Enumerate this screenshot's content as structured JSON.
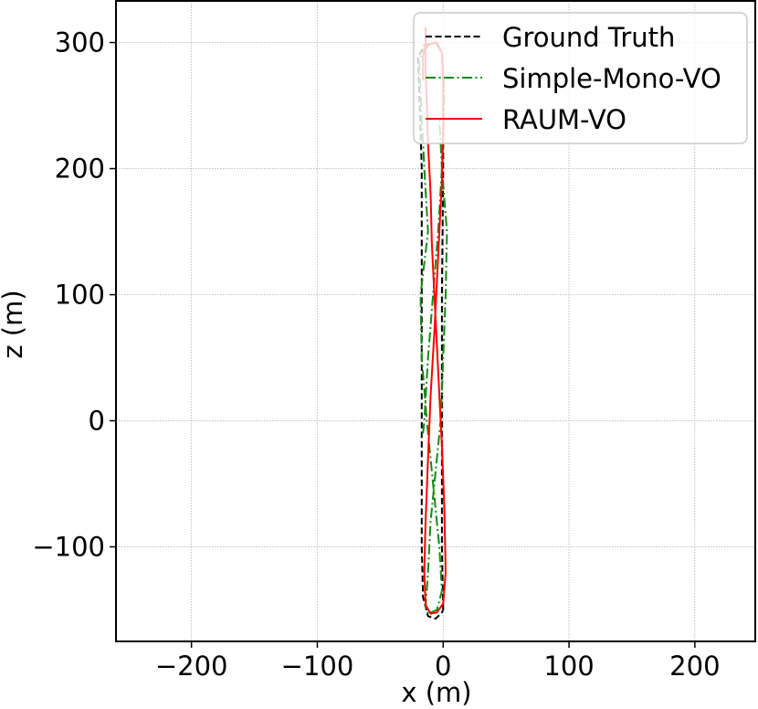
{
  "chart_data": {
    "type": "line",
    "xlabel": "x (m)",
    "ylabel": "z (m)",
    "xlim": [
      -260,
      248
    ],
    "ylim": [
      -175,
      333
    ],
    "xticks": [
      -200,
      -100,
      0,
      100,
      200
    ],
    "yticks": [
      -100,
      0,
      100,
      200,
      300
    ],
    "xtick_labels": [
      "−200",
      "−100",
      "0",
      "100",
      "200"
    ],
    "ytick_labels": [
      "−100",
      "0",
      "100",
      "200",
      "300"
    ],
    "grid": true,
    "legend_position": "top-right",
    "series": [
      {
        "name": "Ground Truth",
        "color": "#000000",
        "style": "dashed",
        "points": [
          [
            0,
            -150
          ],
          [
            -1,
            -100
          ],
          [
            -1,
            0
          ],
          [
            -1,
            100
          ],
          [
            0,
            200
          ],
          [
            0,
            270
          ],
          [
            -1,
            292
          ],
          [
            -6,
            300
          ],
          [
            -15,
            298
          ],
          [
            -20,
            288
          ],
          [
            -19,
            260
          ],
          [
            -17,
            200
          ],
          [
            -17,
            100
          ],
          [
            -17,
            0
          ],
          [
            -17,
            -100
          ],
          [
            -16,
            -140
          ],
          [
            -12,
            -155
          ],
          [
            -6,
            -157
          ],
          [
            -1,
            -152
          ],
          [
            0,
            -150
          ]
        ]
      },
      {
        "name": "Simple-Mono-VO",
        "color": "#138a13",
        "style": "dashdot",
        "points": [
          [
            -16,
            -10
          ],
          [
            -15,
            0
          ],
          [
            -12,
            50
          ],
          [
            -8,
            100
          ],
          [
            -4,
            150
          ],
          [
            -1,
            200
          ],
          [
            1,
            260
          ],
          [
            -1,
            292
          ],
          [
            -6,
            300
          ],
          [
            -14,
            298
          ],
          [
            -19,
            285
          ],
          [
            -18,
            260
          ],
          [
            -15,
            200
          ],
          [
            -12,
            150
          ],
          [
            -18,
            100
          ],
          [
            -17,
            50
          ],
          [
            -13,
            0
          ],
          [
            -8,
            -50
          ],
          [
            -3,
            -100
          ],
          [
            -1,
            -135
          ],
          [
            -5,
            -150
          ],
          [
            -12,
            -153
          ],
          [
            -14,
            -148
          ],
          [
            -12,
            -120
          ],
          [
            -10,
            -80
          ],
          [
            -6,
            -40
          ],
          [
            -2,
            0
          ],
          [
            0,
            50
          ],
          [
            2,
            100
          ],
          [
            3,
            150
          ],
          [
            -1,
            200
          ],
          [
            -3,
            240
          ]
        ]
      },
      {
        "name": "RAUM-VO",
        "color": "#ff0000",
        "style": "solid",
        "points": [
          [
            -14,
            312
          ],
          [
            -14,
            280
          ],
          [
            -13,
            250
          ],
          [
            -12,
            220
          ],
          [
            -10,
            180
          ],
          [
            -9,
            140
          ],
          [
            -7,
            100
          ],
          [
            -5,
            60
          ],
          [
            -3,
            20
          ],
          [
            -1,
            -20
          ],
          [
            1,
            -70
          ],
          [
            2,
            -120
          ],
          [
            0,
            -145
          ],
          [
            -5,
            -152
          ],
          [
            -10,
            -153
          ],
          [
            -14,
            -146
          ],
          [
            -15,
            -120
          ],
          [
            -14,
            -80
          ],
          [
            -12,
            -30
          ],
          [
            -10,
            20
          ],
          [
            -7,
            70
          ],
          [
            -5,
            110
          ],
          [
            -3,
            150
          ],
          [
            -1,
            190
          ],
          [
            0,
            230
          ],
          [
            0,
            270
          ],
          [
            -1,
            292
          ],
          [
            -5,
            300
          ],
          [
            -12,
            298
          ],
          [
            -16,
            290
          ],
          [
            -16,
            270
          ]
        ]
      }
    ]
  }
}
